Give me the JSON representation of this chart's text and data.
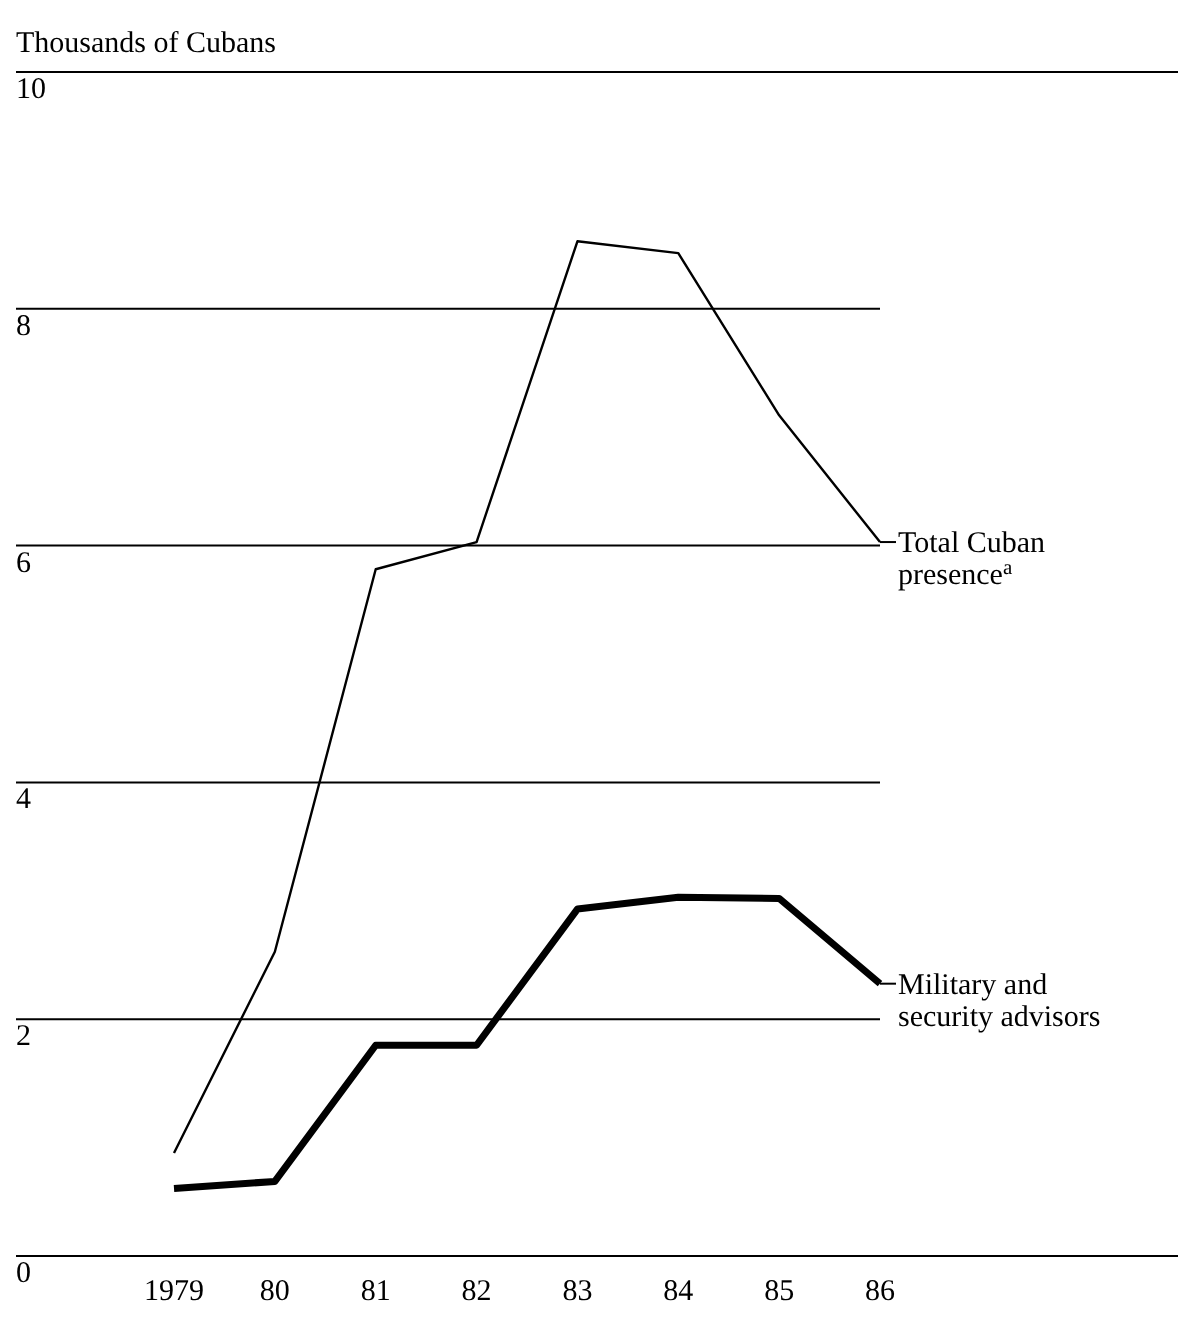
{
  "chart_data": {
    "type": "line",
    "ylabel": "Thousands of Cubans",
    "categories": [
      "1979",
      "80",
      "81",
      "82",
      "83",
      "84",
      "85",
      "86"
    ],
    "series": [
      {
        "name": "Total Cuban presence$^{a}$",
        "color": "#000000",
        "values": [
          0.87,
          2.57,
          5.8,
          6.03,
          8.57,
          8.47,
          7.1,
          6.03
        ]
      },
      {
        "name": "Military and security advisors",
        "color": "#000000",
        "values": [
          0.57,
          0.63,
          1.78,
          1.78,
          2.93,
          3.03,
          3.02,
          2.3
        ]
      }
    ],
    "ylim": [
      0,
      10
    ],
    "yticks": [
      0,
      2,
      4,
      6,
      8,
      10
    ],
    "grid": "y",
    "legend": "right",
    "marker": "none",
    "line_style": "solid"
  }
}
